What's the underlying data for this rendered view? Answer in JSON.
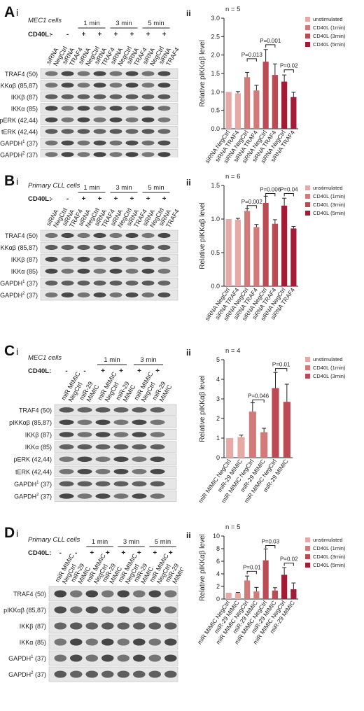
{
  "panels": [
    {
      "letter": "A",
      "sub_blot": "i",
      "sub_plot": "ii",
      "cells": "MEC1 cells",
      "cd40l_label": "CD40L:",
      "cd40l_marks": [
        "-",
        "-",
        "+",
        "+",
        "+",
        "+",
        "+",
        "+"
      ],
      "time_groups": [
        {
          "label": "1 min",
          "cols": [
            2,
            3
          ]
        },
        {
          "label": "3 min",
          "cols": [
            4,
            5
          ]
        },
        {
          "label": "5 min",
          "cols": [
            6,
            7
          ]
        }
      ],
      "lane_labels": [
        [
          "siRNA",
          "NegCtrl"
        ],
        [
          "siRNA",
          "TRAF4"
        ],
        [
          "siRNA",
          "NegCtrl"
        ],
        [
          "siRNA",
          "TRAF4"
        ],
        [
          "siRNA",
          "NegCtrl"
        ],
        [
          "siRNA",
          "TRAF4"
        ],
        [
          "siRNA",
          "NegCtrl"
        ],
        [
          "siRNA",
          "TRAF4"
        ]
      ],
      "rows": [
        {
          "name": "TRAF4",
          "kda": "(50)",
          "sup": ""
        },
        {
          "name": "pIKKαβ",
          "kda": "(85,87)",
          "sup": ""
        },
        {
          "name": "IKKβ",
          "kda": "(87)",
          "sup": ""
        },
        {
          "name": "IKKα",
          "kda": "(85)",
          "sup": ""
        },
        {
          "name": "pERK",
          "kda": "(42,44)",
          "sup": ""
        },
        {
          "name": "tERK",
          "kda": "(42,44)",
          "sup": ""
        },
        {
          "name": "GAPDH",
          "kda": "(37)",
          "sup": "1"
        },
        {
          "name": "GAPDH",
          "kda": "(37)",
          "sup": "2"
        }
      ]
    },
    {
      "letter": "B",
      "sub_blot": "i",
      "sub_plot": "ii",
      "cells": "Primary CLL cells",
      "cd40l_label": "CD40L:",
      "cd40l_marks": [
        "-",
        "-",
        "+",
        "+",
        "+",
        "+",
        "+",
        "+"
      ],
      "time_groups": [
        {
          "label": "1 min",
          "cols": [
            2,
            3
          ]
        },
        {
          "label": "3 min",
          "cols": [
            4,
            5
          ]
        },
        {
          "label": "5 min",
          "cols": [
            6,
            7
          ]
        }
      ],
      "lane_labels": [
        [
          "siRNA",
          "NegCtrl"
        ],
        [
          "siRNA",
          "TRAF4"
        ],
        [
          "siRNA",
          "NegCtrl"
        ],
        [
          "siRNA",
          "TRAF4"
        ],
        [
          "siRNA",
          "NegCtrl"
        ],
        [
          "siRNA",
          "TRAF4"
        ],
        [
          "siRNA",
          "NegCtrl"
        ],
        [
          "siRNA",
          "TRAF4"
        ]
      ],
      "rows": [
        {
          "name": "TRAF4",
          "kda": "(50)",
          "sup": ""
        },
        {
          "name": "pIKKαβ",
          "kda": "(85,87)",
          "sup": ""
        },
        {
          "name": "IKKβ",
          "kda": "(87)",
          "sup": ""
        },
        {
          "name": "IKKα",
          "kda": "(85)",
          "sup": ""
        },
        {
          "name": "GAPDH",
          "kda": "(37)",
          "sup": "1"
        },
        {
          "name": "GAPDH",
          "kda": "(37)",
          "sup": "2"
        }
      ]
    },
    {
      "letter": "C",
      "sub_blot": "i",
      "sub_plot": "ii",
      "cells": "MEC1 cells",
      "cd40l_label": "CD40L:",
      "cd40l_marks": [
        "-",
        "-",
        "+",
        "+",
        "+",
        "+"
      ],
      "time_groups": [
        {
          "label": "1 min",
          "cols": [
            2,
            3
          ]
        },
        {
          "label": "3 min",
          "cols": [
            4,
            5
          ]
        }
      ],
      "lane_labels": [
        [
          "miR MIMIC",
          "NegCtrl"
        ],
        [
          "miR-29",
          "MIMIC"
        ],
        [
          "miR MIMIC",
          "NegCtrl"
        ],
        [
          "miR-29",
          "MIMIC"
        ],
        [
          "miR MIMIC",
          "NegCtrl"
        ],
        [
          "miR-29",
          "MIMIC"
        ]
      ],
      "rows": [
        {
          "name": "TRAF4",
          "kda": "(50)",
          "sup": ""
        },
        {
          "name": "pIKKαβ",
          "kda": "(85,87)",
          "sup": ""
        },
        {
          "name": "IKKβ",
          "kda": "(87)",
          "sup": ""
        },
        {
          "name": "IKKα",
          "kda": "(85)",
          "sup": ""
        },
        {
          "name": "pERK",
          "kda": "(42,44)",
          "sup": ""
        },
        {
          "name": "tERK",
          "kda": "(42,44)",
          "sup": ""
        },
        {
          "name": "GAPDH",
          "kda": "(37)",
          "sup": "1"
        },
        {
          "name": "GAPDH",
          "kda": "(37)",
          "sup": "2"
        }
      ]
    },
    {
      "letter": "D",
      "sub_blot": "i",
      "sub_plot": "ii",
      "cells": "Primary CLL cells",
      "cd40l_label": "CD40L:",
      "cd40l_marks": [
        "-",
        "-",
        "+",
        "+",
        "+",
        "+",
        "+",
        "+"
      ],
      "time_groups": [
        {
          "label": "1 min",
          "cols": [
            2,
            3
          ]
        },
        {
          "label": "3 min",
          "cols": [
            4,
            5
          ]
        },
        {
          "label": "5 min",
          "cols": [
            6,
            7
          ]
        }
      ],
      "lane_labels": [
        [
          "miR MIMIC",
          "NegCtrl"
        ],
        [
          "miR-29",
          "MIMIC"
        ],
        [
          "miR MIMIC",
          "NegCtrl"
        ],
        [
          "miR-29",
          "MIMIC"
        ],
        [
          "miR MIMIC",
          "NegCtrl"
        ],
        [
          "miR-29",
          "MIMIC"
        ],
        [
          "miR MIMIC",
          "NegCtrl"
        ],
        [
          "miR-29",
          "MIMIC"
        ]
      ],
      "rows": [
        {
          "name": "TRAF4",
          "kda": "(50)",
          "sup": ""
        },
        {
          "name": "pIKKαβ",
          "kda": "(85,87)",
          "sup": ""
        },
        {
          "name": "IKKβ",
          "kda": "(87)",
          "sup": ""
        },
        {
          "name": "IKKα",
          "kda": "(85)",
          "sup": ""
        },
        {
          "name": "GAPDH",
          "kda": "(37)",
          "sup": "1"
        },
        {
          "name": "GAPDH",
          "kda": "(37)",
          "sup": "2"
        }
      ]
    }
  ],
  "chart_data": [
    {
      "type": "bar",
      "n_label": "n = 5",
      "ylabel": "Relative pIKKαβ level",
      "ylim": [
        0,
        3.0
      ],
      "yticks": [
        0.0,
        0.5,
        1.0,
        1.5,
        2.0,
        2.5,
        3.0
      ],
      "ytick_labels": [
        "0.0",
        "0.5",
        "1.0",
        "1.5",
        "2.0",
        "2.5",
        "3.0"
      ],
      "categories": [
        "siRNA NegCtrl",
        "siRNA TRAF4",
        "siRNA NegCtrl",
        "siRNA TRAF4",
        "siRNA NegCtrl",
        "siRNA TRAF4",
        "siRNA NegCtrl",
        "siRNA TRAF4"
      ],
      "values": [
        1.0,
        0.96,
        1.4,
        1.04,
        1.82,
        1.46,
        1.28,
        0.86
      ],
      "errors": [
        0.0,
        0.05,
        0.13,
        0.14,
        0.33,
        0.3,
        0.18,
        0.13
      ],
      "group": [
        0,
        0,
        1,
        1,
        2,
        2,
        3,
        3
      ],
      "legend": [
        "unstimulated",
        "CD40L (1min)",
        "CD40L (3min)",
        "CD40L (5min)"
      ],
      "legend_colors": [
        "#e6a9a5",
        "#d27a79",
        "#bb4a52",
        "#a51a34"
      ],
      "pvalues": [
        {
          "label": "P=0.013",
          "bars": [
            2,
            3
          ],
          "y": 1.9
        },
        {
          "label": "P=0.001",
          "bars": [
            4,
            5
          ],
          "y": 2.28
        },
        {
          "label": "P=0.02",
          "bars": [
            6,
            7
          ],
          "y": 1.6
        }
      ]
    },
    {
      "type": "bar",
      "n_label": "n = 6",
      "ylabel": "Relative pIKKαβ level",
      "ylim": [
        0,
        1.5
      ],
      "yticks": [
        0.0,
        0.5,
        1.0,
        1.5
      ],
      "ytick_labels": [
        "0.0",
        "0.5",
        "1.0",
        "1.5"
      ],
      "categories": [
        "siRNA NegCtrl",
        "siRNA TRAF4",
        "siRNA NegCtrl",
        "siRNA TRAF4",
        "siRNA NegCtrl",
        "siRNA TRAF4",
        "siRNA NegCtrl",
        "siRNA TRAF4"
      ],
      "values": [
        1.0,
        0.99,
        1.12,
        0.88,
        1.24,
        0.93,
        1.2,
        0.86
      ],
      "errors": [
        0.0,
        0.02,
        0.04,
        0.04,
        0.1,
        0.06,
        0.11,
        0.03
      ],
      "group": [
        0,
        0,
        1,
        1,
        2,
        2,
        3,
        3
      ],
      "legend": [
        "unstimulated",
        "CD40L (1min)",
        "CD40L (3min)",
        "CD40L (5min)"
      ],
      "legend_colors": [
        "#e6a9a5",
        "#d27a79",
        "#bb4a52",
        "#a51a34"
      ],
      "pvalues": [
        {
          "label": "P=0.002",
          "bars": [
            2,
            3
          ],
          "y": 1.2
        },
        {
          "label": "P=0.006",
          "bars": [
            4,
            5
          ],
          "y": 1.38
        },
        {
          "label": "P=0.04",
          "bars": [
            6,
            7
          ],
          "y": 1.38
        }
      ]
    },
    {
      "type": "bar",
      "n_label": "n = 4",
      "ylabel": "Relative pIKKαβ level",
      "ylim": [
        0,
        5
      ],
      "yticks": [
        0,
        1,
        2,
        3,
        4,
        5
      ],
      "ytick_labels": [
        "0",
        "1",
        "2",
        "3",
        "4",
        "5"
      ],
      "categories": [
        "miR MIMIC NegCtrl",
        "miR-29 MIMIC",
        "miR MIMIC NegCtrl",
        "miR-29 MIMIC",
        "miR MIMIC NegCtrl",
        "miR-29 MIMIC"
      ],
      "values": [
        1.0,
        1.05,
        2.35,
        1.3,
        3.55,
        2.85
      ],
      "errors": [
        0.0,
        0.1,
        0.45,
        0.2,
        0.8,
        0.9
      ],
      "group": [
        0,
        0,
        1,
        1,
        2,
        2
      ],
      "legend": [
        "unstimulated",
        "CD40L (1min)",
        "CD40L (3min)"
      ],
      "legend_colors": [
        "#e6a9a5",
        "#d27a79",
        "#bb4a52"
      ],
      "pvalues": [
        {
          "label": "P=0.046",
          "bars": [
            2,
            3
          ],
          "y": 2.95
        },
        {
          "label": "P=0.01",
          "bars": [
            4,
            5
          ],
          "y": 4.55
        }
      ]
    },
    {
      "type": "bar",
      "n_label": "n = 5",
      "ylabel": "Relative pIKKαβ level",
      "ylim": [
        0,
        10
      ],
      "yticks": [
        0,
        2,
        4,
        6,
        8,
        10
      ],
      "ytick_labels": [
        "0",
        "2",
        "4",
        "6",
        "8",
        "10"
      ],
      "categories": [
        "miR MIMIC NegCtrl",
        "miR-29 MIMIC",
        "miR MIMIC NegCtrl",
        "miR-29 MIMIC",
        "miR MIMIC NegCtrl",
        "miR-29 MIMIC",
        "miR MIMIC NegCtrl",
        "miR-29 MIMIC"
      ],
      "values": [
        1.0,
        0.95,
        2.95,
        1.2,
        6.15,
        1.35,
        3.85,
        1.55
      ],
      "errors": [
        0.0,
        0.1,
        0.7,
        0.65,
        1.8,
        0.45,
        1.15,
        1.0
      ],
      "group": [
        0,
        0,
        1,
        1,
        2,
        2,
        3,
        3
      ],
      "legend": [
        "unstimulated",
        "CD40L (1min)",
        "CD40L (3min)",
        "CD40L (5min)"
      ],
      "legend_colors": [
        "#e6a9a5",
        "#d27a79",
        "#bb4a52",
        "#a51a34"
      ],
      "pvalues": [
        {
          "label": "P=0.01",
          "bars": [
            2,
            3
          ],
          "y": 4.4
        },
        {
          "label": "P=0.03",
          "bars": [
            4,
            5
          ],
          "y": 8.5
        },
        {
          "label": "P=0.02",
          "bars": [
            6,
            7
          ],
          "y": 5.7
        }
      ]
    }
  ]
}
